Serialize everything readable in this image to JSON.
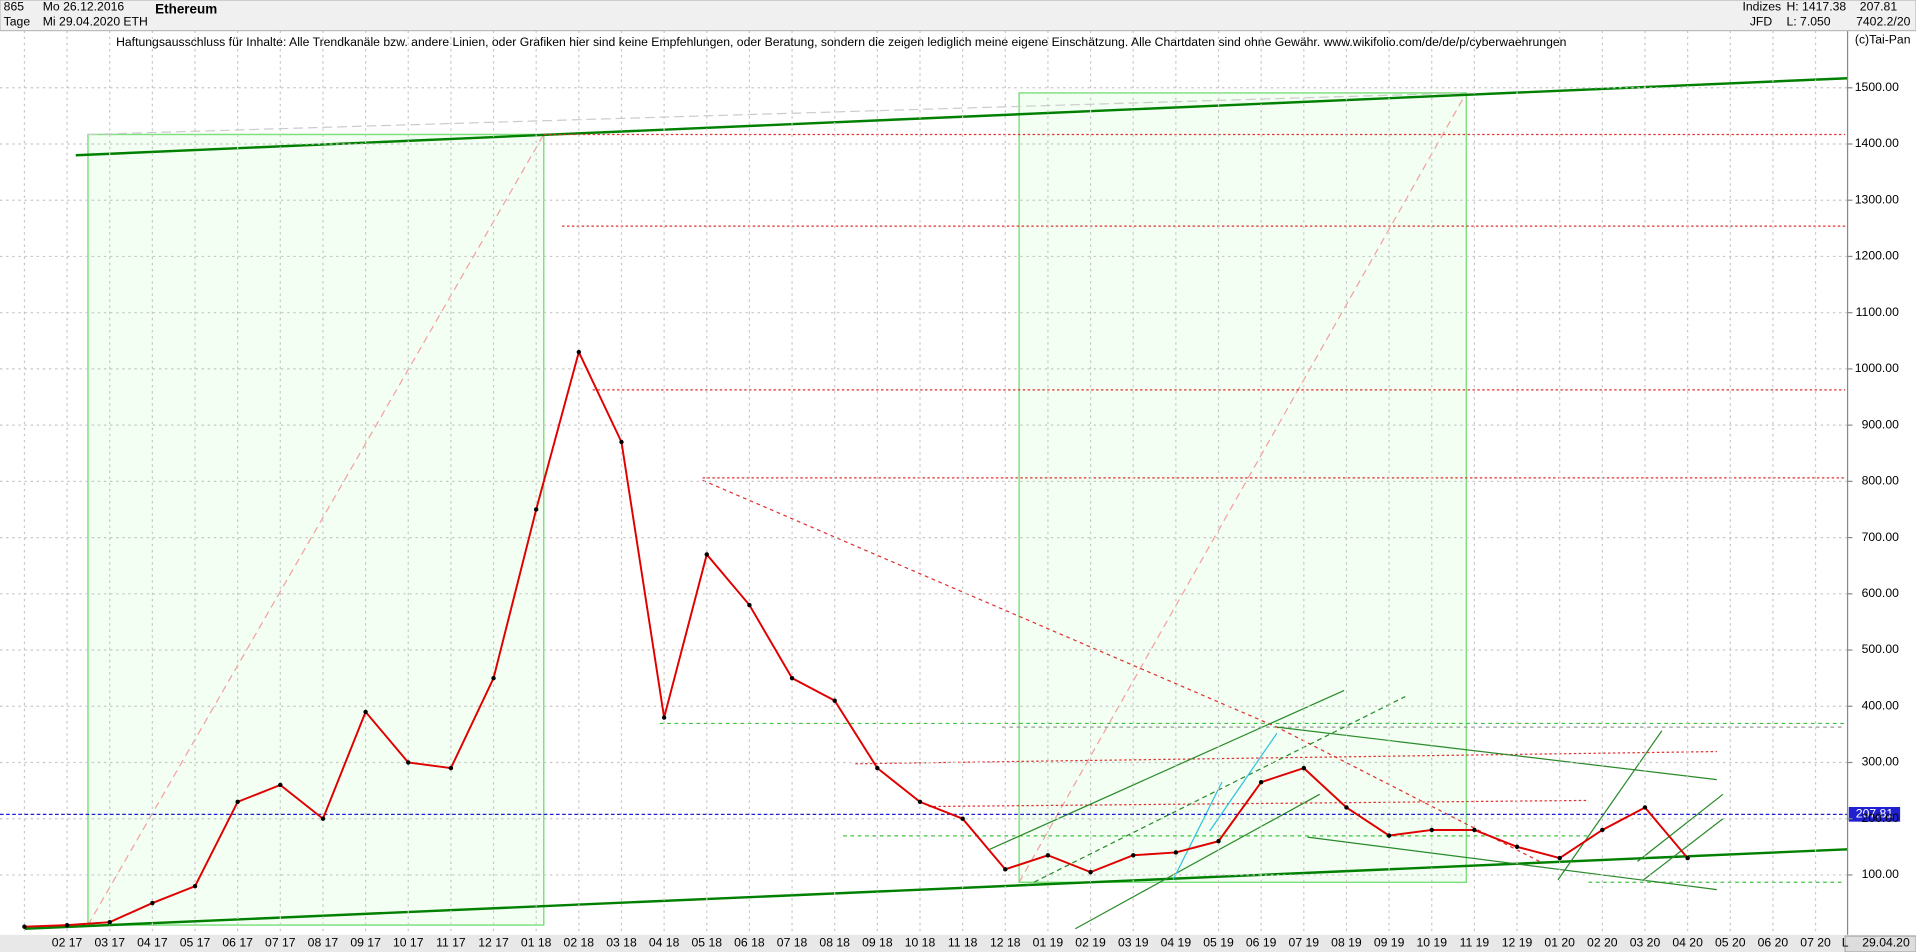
{
  "header": {
    "count": "865",
    "start": "Mo 26.12.2016",
    "period": "Tage",
    "end": "Mi 29.04.2020",
    "title": "Ethereum",
    "symbol": "ETH",
    "disclaimer": "Haftungsausschluss für Inhalte: Alle Trendkanäle bzw. andere Linien, oder Grafiken hier sind keine Empfehlungen, oder Beratung, sondern die zeigen lediglich meine eigene Einschätzung. Alle Chartdaten sind ohne Gewähr.  www.wikifolio.com/de/de/p/cyberwaehrungen",
    "group": "Indizes",
    "source": "JFD",
    "high": "H: 1417.38",
    "low": "L: 7.050",
    "last": "207.81",
    "info": "7402.2/20",
    "copyright": "(c)Tai-Pan",
    "date": "29.04.20",
    "scale": "L"
  },
  "chart_data": {
    "type": "line",
    "color": "#e00000",
    "categories": [
      null,
      "02 17",
      "03 17",
      "04 17",
      "05 17",
      "06 17",
      "07 17",
      "08 17",
      "09 17",
      "10 17",
      "11 17",
      "12 17",
      "01 18",
      "02 18",
      "03 18",
      "04 18",
      "05 18",
      "06 18",
      "07 18",
      "08 18",
      "09 18",
      "10 18",
      "11 18",
      "12 18",
      "01 19",
      "02 19",
      "03 19",
      "04 19",
      "05 19",
      "06 19",
      "07 19",
      "08 19",
      "09 19",
      "10 19",
      "11 19",
      "12 19",
      "01 20",
      "02 20",
      "03 20",
      "04 20",
      "05 20",
      "06 20",
      "07 20"
    ],
    "values": [
      8,
      10.7,
      16,
      50,
      80,
      230,
      260,
      200,
      390,
      300,
      290,
      450,
      750,
      1030,
      870,
      380,
      670,
      580,
      450,
      410,
      290,
      230,
      200,
      110,
      135,
      105,
      135,
      140,
      160,
      265,
      290,
      220,
      170,
      180,
      180,
      150,
      130,
      180,
      220,
      130,
      null,
      null,
      null
    ],
    "ylim": [
      0,
      1656
    ],
    "yticks": [
      {
        "value": 100,
        "label": "100.00"
      },
      {
        "value": 200,
        "label": "200.00"
      },
      {
        "value": 300,
        "label": "300.00"
      },
      {
        "value": 400,
        "label": "400.00"
      },
      {
        "value": 500,
        "label": "500.00"
      },
      {
        "value": 600,
        "label": "600.00"
      },
      {
        "value": 700,
        "label": "700.00"
      },
      {
        "value": 800,
        "label": "800.00"
      },
      {
        "value": 900,
        "label": "900.00"
      },
      {
        "value": 1000,
        "label": "1000.00"
      },
      {
        "value": 1100,
        "label": "1100.00"
      },
      {
        "value": 1200,
        "label": "1200.00"
      },
      {
        "value": 1300,
        "label": "1300.00"
      },
      {
        "value": 1400,
        "label": "1400.00"
      },
      {
        "value": 1500,
        "label": "1500.00"
      }
    ],
    "last_price": {
      "value": 207.81,
      "label": "207.81"
    },
    "grid": true
  }
}
